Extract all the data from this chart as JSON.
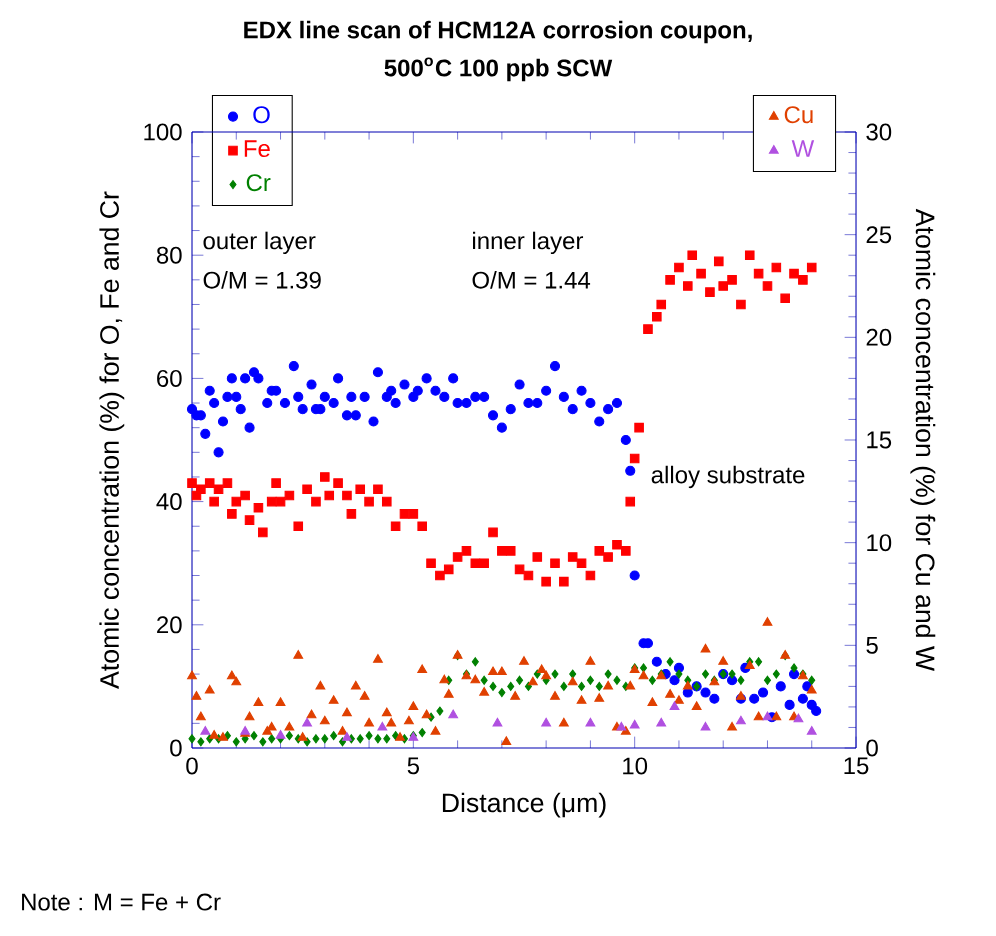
{
  "chart_data": {
    "type": "scatter",
    "title": "EDX line scan of HCM12A corrosion coupon,",
    "subtitle": "500$^{o}$C 100 ppb SCW",
    "xlabel": "Distance (μm)",
    "ylabel": "Atomic concentration (%) for O, Fe and Cr",
    "y2label": "Atomic concentration (%) for Cu and W",
    "xlim": [
      0,
      15
    ],
    "xticks": [
      0,
      5,
      10,
      15
    ],
    "ylim": [
      0,
      100
    ],
    "yticks": [
      0,
      20,
      40,
      60,
      80,
      100
    ],
    "y2lim": [
      0,
      30
    ],
    "y2ticks": [
      0,
      5,
      10,
      15,
      20,
      25,
      30
    ],
    "grid": false,
    "legend": "top left",
    "annotations": [
      "outer layer",
      "O/M = 1.39",
      "inner layer",
      "O/M = 1.44",
      "alloy substrate",
      "Note : M = Fe + Cr"
    ],
    "series": [
      {
        "name": "O",
        "color": "#0000ff",
        "marker": "circle",
        "x": [
          0.0,
          0.1,
          0.2,
          0.3,
          0.4,
          0.5,
          0.6,
          0.7,
          0.8,
          0.9,
          1.0,
          1.1,
          1.2,
          1.3,
          1.4,
          1.5,
          1.7,
          1.8,
          1.9,
          2.1,
          2.3,
          2.4,
          2.5,
          2.7,
          2.8,
          2.9,
          3.0,
          3.2,
          3.3,
          3.5,
          3.6,
          3.7,
          3.9,
          4.1,
          4.2,
          4.4,
          4.5,
          4.6,
          4.8,
          5.0,
          5.1,
          5.3,
          5.5,
          5.7,
          5.9,
          6.0,
          6.2,
          6.4,
          6.6,
          6.8,
          7.0,
          7.2,
          7.4,
          7.6,
          7.8,
          8.0,
          8.2,
          8.4,
          8.6,
          8.8,
          9.0,
          9.2,
          9.4,
          9.6,
          9.8,
          9.9,
          10.0,
          10.2,
          10.3,
          10.5,
          10.7,
          10.9,
          11.0,
          11.2,
          11.4,
          11.6,
          11.8,
          12.0,
          12.2,
          12.4,
          12.5,
          12.7,
          12.9,
          13.1,
          13.3,
          13.5,
          13.6,
          13.8,
          13.9,
          14.0,
          14.1
        ],
        "values": [
          55,
          54,
          54,
          51,
          58,
          56,
          48,
          53,
          57,
          60,
          57,
          55,
          60,
          52,
          61,
          60,
          56,
          58,
          58,
          56,
          62,
          57,
          55,
          59,
          55,
          55,
          57,
          56,
          60,
          54,
          57,
          54,
          57,
          53,
          61,
          57,
          58,
          56,
          59,
          57,
          58,
          60,
          58,
          57,
          60,
          56,
          56,
          57,
          57,
          54,
          52,
          55,
          59,
          56,
          56,
          58,
          62,
          57,
          55,
          58,
          56,
          53,
          55,
          56,
          50,
          45,
          28,
          17,
          17,
          14,
          12,
          11,
          13,
          9,
          10,
          9,
          8,
          12,
          11,
          8,
          13,
          8,
          9,
          5,
          10,
          7,
          12,
          8,
          10,
          7,
          6
        ]
      },
      {
        "name": "Fe",
        "color": "#ff0000",
        "marker": "square",
        "x": [
          0.0,
          0.1,
          0.2,
          0.4,
          0.5,
          0.6,
          0.8,
          0.9,
          1.0,
          1.2,
          1.3,
          1.5,
          1.6,
          1.8,
          1.9,
          2.0,
          2.2,
          2.4,
          2.6,
          2.8,
          3.0,
          3.1,
          3.3,
          3.5,
          3.6,
          3.8,
          4.0,
          4.2,
          4.4,
          4.6,
          4.8,
          5.0,
          5.2,
          5.4,
          5.6,
          5.8,
          6.0,
          6.2,
          6.4,
          6.6,
          6.8,
          7.0,
          7.2,
          7.4,
          7.6,
          7.8,
          8.0,
          8.2,
          8.4,
          8.6,
          8.8,
          9.0,
          9.2,
          9.4,
          9.6,
          9.8,
          9.9,
          10.0,
          10.1,
          10.3,
          10.5,
          10.6,
          10.8,
          11.0,
          11.2,
          11.3,
          11.5,
          11.7,
          11.9,
          12.0,
          12.2,
          12.4,
          12.6,
          12.8,
          13.0,
          13.2,
          13.4,
          13.6,
          13.8,
          14.0
        ],
        "values": [
          43,
          41,
          42,
          43,
          40,
          42,
          43,
          38,
          40,
          41,
          37,
          39,
          35,
          40,
          43,
          40,
          41,
          36,
          42,
          40,
          44,
          41,
          43,
          41,
          38,
          42,
          40,
          42,
          40,
          36,
          38,
          38,
          36,
          30,
          28,
          29,
          31,
          32,
          30,
          30,
          35,
          32,
          32,
          29,
          28,
          31,
          27,
          30,
          27,
          31,
          30,
          28,
          32,
          31,
          33,
          32,
          40,
          47,
          52,
          68,
          70,
          72,
          76,
          78,
          75,
          80,
          77,
          74,
          79,
          75,
          76,
          72,
          80,
          77,
          75,
          78,
          73,
          77,
          76,
          78
        ]
      },
      {
        "name": "Cr",
        "color": "#008000",
        "marker": "diamond",
        "x": [
          0.0,
          0.2,
          0.4,
          0.6,
          0.8,
          1.0,
          1.2,
          1.4,
          1.6,
          1.8,
          2.0,
          2.2,
          2.4,
          2.6,
          2.8,
          3.0,
          3.2,
          3.4,
          3.6,
          3.8,
          4.0,
          4.2,
          4.4,
          4.6,
          4.8,
          5.0,
          5.2,
          5.4,
          5.6,
          5.8,
          6.0,
          6.2,
          6.4,
          6.6,
          6.8,
          7.0,
          7.2,
          7.4,
          7.6,
          7.8,
          8.0,
          8.2,
          8.4,
          8.6,
          8.8,
          9.0,
          9.2,
          9.4,
          9.6,
          9.8,
          10.0,
          10.2,
          10.4,
          10.6,
          10.8,
          11.0,
          11.2,
          11.4,
          11.6,
          11.8,
          12.0,
          12.2,
          12.4,
          12.6,
          12.8,
          13.0,
          13.2,
          13.4,
          13.6,
          13.8,
          14.0
        ],
        "values": [
          1.5,
          1,
          1.5,
          1.5,
          2,
          1,
          1.5,
          2,
          1,
          1.5,
          1.5,
          2,
          1.5,
          1,
          1.5,
          1.5,
          2,
          1,
          1.5,
          1.5,
          2,
          1.5,
          1.5,
          2,
          1.5,
          2,
          2.5,
          5,
          6,
          11,
          15,
          12,
          14,
          11,
          10,
          9,
          10,
          11,
          10,
          12,
          11,
          12,
          10,
          12,
          10,
          11,
          10,
          12,
          11,
          10,
          13,
          13,
          11,
          12,
          14,
          12,
          11,
          10,
          12,
          11,
          12,
          12,
          11,
          14,
          14,
          11,
          12,
          15,
          13,
          12,
          11
        ]
      },
      {
        "name": "Cu",
        "color": "#e04000",
        "marker": "triangle",
        "axis": "y2",
        "x": [
          0.0,
          0.1,
          0.2,
          0.4,
          0.5,
          0.7,
          0.9,
          1.0,
          1.2,
          1.3,
          1.5,
          1.7,
          1.8,
          2.0,
          2.2,
          2.4,
          2.5,
          2.7,
          2.9,
          3.0,
          3.2,
          3.4,
          3.5,
          3.7,
          3.9,
          4.0,
          4.2,
          4.4,
          4.5,
          4.7,
          4.9,
          5.0,
          5.2,
          5.3,
          5.5,
          5.7,
          5.8,
          6.0,
          6.2,
          6.4,
          6.6,
          6.8,
          7.0,
          7.1,
          7.3,
          7.5,
          7.7,
          7.9,
          8.0,
          8.2,
          8.4,
          8.6,
          8.8,
          9.0,
          9.2,
          9.4,
          9.6,
          9.8,
          9.9,
          10.0,
          10.2,
          10.4,
          10.6,
          10.8,
          11.0,
          11.2,
          11.4,
          11.6,
          11.8,
          12.0,
          12.2,
          12.4,
          12.6,
          12.8,
          13.0,
          13.2,
          13.4,
          13.6,
          13.8,
          14.0
        ],
        "values": [
          3.5,
          2.5,
          1.5,
          2.8,
          0.6,
          0.5,
          3.5,
          3.2,
          0.7,
          1.5,
          2.2,
          0.8,
          1.0,
          2.2,
          1.0,
          4.5,
          0.5,
          1.6,
          3.0,
          1.3,
          2.3,
          0.8,
          1.7,
          3.0,
          2.5,
          1.2,
          4.3,
          1.7,
          1.2,
          0.5,
          1.3,
          2.0,
          3.8,
          1.6,
          0.8,
          3.3,
          2.6,
          4.5,
          3.5,
          3.3,
          2.7,
          3.7,
          3.7,
          0.3,
          2.5,
          4.2,
          3.2,
          3.8,
          3.5,
          2.5,
          1.2,
          3.2,
          2.3,
          4.2,
          2.4,
          3.0,
          1.0,
          0.8,
          3.0,
          3.8,
          3.5,
          2.2,
          3.5,
          2.6,
          2.3,
          3.0,
          2.0,
          4.8,
          3.2,
          4.2,
          1.0,
          2.5,
          4.0,
          1.5,
          6.1,
          1.5,
          4.5,
          1.5,
          3.5,
          2.8
        ]
      },
      {
        "name": "W",
        "color": "#b050e0",
        "marker": "triangle",
        "axis": "y2",
        "x": [
          0.3,
          1.2,
          2.0,
          2.6,
          3.5,
          4.3,
          5.0,
          5.9,
          6.9,
          8.0,
          9.0,
          9.7,
          10.0,
          10.6,
          10.9,
          11.6,
          12.4,
          13.0,
          13.7,
          14.0
        ],
        "values": [
          0.8,
          0.8,
          0.6,
          1.2,
          0.5,
          1.0,
          0.5,
          1.6,
          1.2,
          1.2,
          1.2,
          1.0,
          1.1,
          1.2,
          2.0,
          1.0,
          1.3,
          1.5,
          1.4,
          0.8
        ]
      }
    ]
  }
}
